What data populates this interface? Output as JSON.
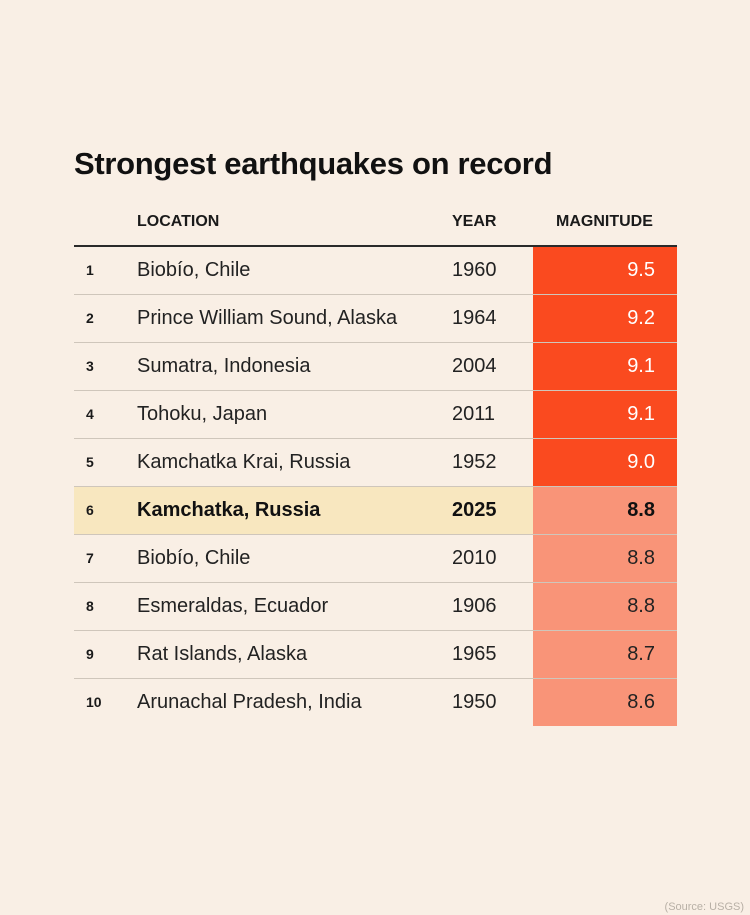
{
  "title": "Strongest earthquakes on record",
  "chart_data": {
    "type": "table",
    "title": "Strongest earthquakes on record",
    "columns": [
      "",
      "LOCATION",
      "YEAR",
      "MAGNITUDE"
    ],
    "rows": [
      {
        "rank": "1",
        "location": "Biobío, Chile",
        "year": "1960",
        "magnitude": "9.5",
        "tier": "high"
      },
      {
        "rank": "2",
        "location": "Prince William Sound, Alaska",
        "year": "1964",
        "magnitude": "9.2",
        "tier": "high"
      },
      {
        "rank": "3",
        "location": "Sumatra, Indonesia",
        "year": "2004",
        "magnitude": "9.1",
        "tier": "high"
      },
      {
        "rank": "4",
        "location": "Tohoku, Japan",
        "year": "2011",
        "magnitude": "9.1",
        "tier": "high"
      },
      {
        "rank": "5",
        "location": "Kamchatka Krai, Russia",
        "year": "1952",
        "magnitude": "9.0",
        "tier": "high"
      },
      {
        "rank": "6",
        "location": "Kamchatka, Russia",
        "year": "2025",
        "magnitude": "8.8",
        "tier": "low",
        "highlight": true
      },
      {
        "rank": "7",
        "location": "Biobío, Chile",
        "year": "2010",
        "magnitude": "8.8",
        "tier": "low"
      },
      {
        "rank": "8",
        "location": "Esmeraldas, Ecuador",
        "year": "1906",
        "magnitude": "8.8",
        "tier": "low"
      },
      {
        "rank": "9",
        "location": "Rat Islands, Alaska",
        "year": "1965",
        "magnitude": "8.7",
        "tier": "low"
      },
      {
        "rank": "10",
        "location": "Arunachal Pradesh, India",
        "year": "1950",
        "magnitude": "8.6",
        "tier": "low"
      }
    ]
  },
  "colors": {
    "background": "#f9efe5",
    "magnitude_high": "#fa4a1f",
    "magnitude_low": "#f99478",
    "highlight_row": "#f8e7bf"
  },
  "source": "(Source: USGS)"
}
